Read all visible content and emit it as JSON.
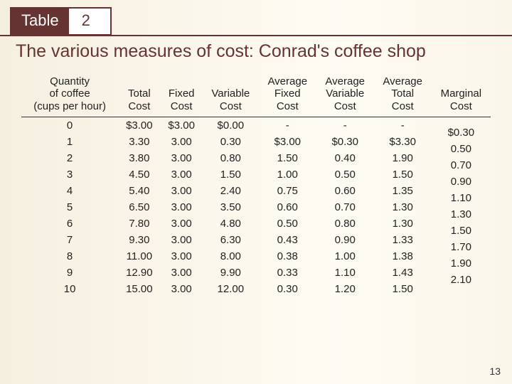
{
  "header": {
    "table_label": "Table",
    "table_number": "2"
  },
  "title": "The various measures of cost: Conrad's coffee shop",
  "columns": {
    "c0": "Quantity\nof coffee\n(cups per hour)",
    "c1": "Total\nCost",
    "c2": "Fixed\nCost",
    "c3": "Variable\nCost",
    "c4": "Average\nFixed\nCost",
    "c5": "Average\nVariable\nCost",
    "c6": "Average\nTotal\nCost",
    "c7": "Marginal\nCost"
  },
  "rows": [
    {
      "q": "0",
      "tc": "$3.00",
      "fc": "$3.00",
      "vc": "$0.00",
      "afc": "-",
      "avc": "-",
      "atc": "-"
    },
    {
      "q": "1",
      "tc": "3.30",
      "fc": "3.00",
      "vc": "0.30",
      "afc": "$3.00",
      "avc": "$0.30",
      "atc": "$3.30"
    },
    {
      "q": "2",
      "tc": "3.80",
      "fc": "3.00",
      "vc": "0.80",
      "afc": "1.50",
      "avc": "0.40",
      "atc": "1.90"
    },
    {
      "q": "3",
      "tc": "4.50",
      "fc": "3.00",
      "vc": "1.50",
      "afc": "1.00",
      "avc": "0.50",
      "atc": "1.50"
    },
    {
      "q": "4",
      "tc": "5.40",
      "fc": "3.00",
      "vc": "2.40",
      "afc": "0.75",
      "avc": "0.60",
      "atc": "1.35"
    },
    {
      "q": "5",
      "tc": "6.50",
      "fc": "3.00",
      "vc": "3.50",
      "afc": "0.60",
      "avc": "0.70",
      "atc": "1.30"
    },
    {
      "q": "6",
      "tc": "7.80",
      "fc": "3.00",
      "vc": "4.80",
      "afc": "0.50",
      "avc": "0.80",
      "atc": "1.30"
    },
    {
      "q": "7",
      "tc": "9.30",
      "fc": "3.00",
      "vc": "6.30",
      "afc": "0.43",
      "avc": "0.90",
      "atc": "1.33"
    },
    {
      "q": "8",
      "tc": "11.00",
      "fc": "3.00",
      "vc": "8.00",
      "afc": "0.38",
      "avc": "1.00",
      "atc": "1.38"
    },
    {
      "q": "9",
      "tc": "12.90",
      "fc": "3.00",
      "vc": "9.90",
      "afc": "0.33",
      "avc": "1.10",
      "atc": "1.43"
    },
    {
      "q": "10",
      "tc": "15.00",
      "fc": "3.00",
      "vc": "12.00",
      "afc": "0.30",
      "avc": "1.20",
      "atc": "1.50"
    }
  ],
  "marginal": [
    "$0.30",
    "0.50",
    "0.70",
    "0.90",
    "1.10",
    "1.30",
    "1.50",
    "1.70",
    "1.90",
    "2.10"
  ],
  "page_number": "13",
  "style": {
    "brand_color": "#663333",
    "background_start": "#f5efe0",
    "background_end": "#fdfbf3",
    "text_color": "#333333",
    "rule_color": "#663333",
    "header_font": "Arial",
    "body_font": "Arial",
    "title_fontsize": 25,
    "header_fontsize": 15,
    "cell_fontsize": 15
  }
}
